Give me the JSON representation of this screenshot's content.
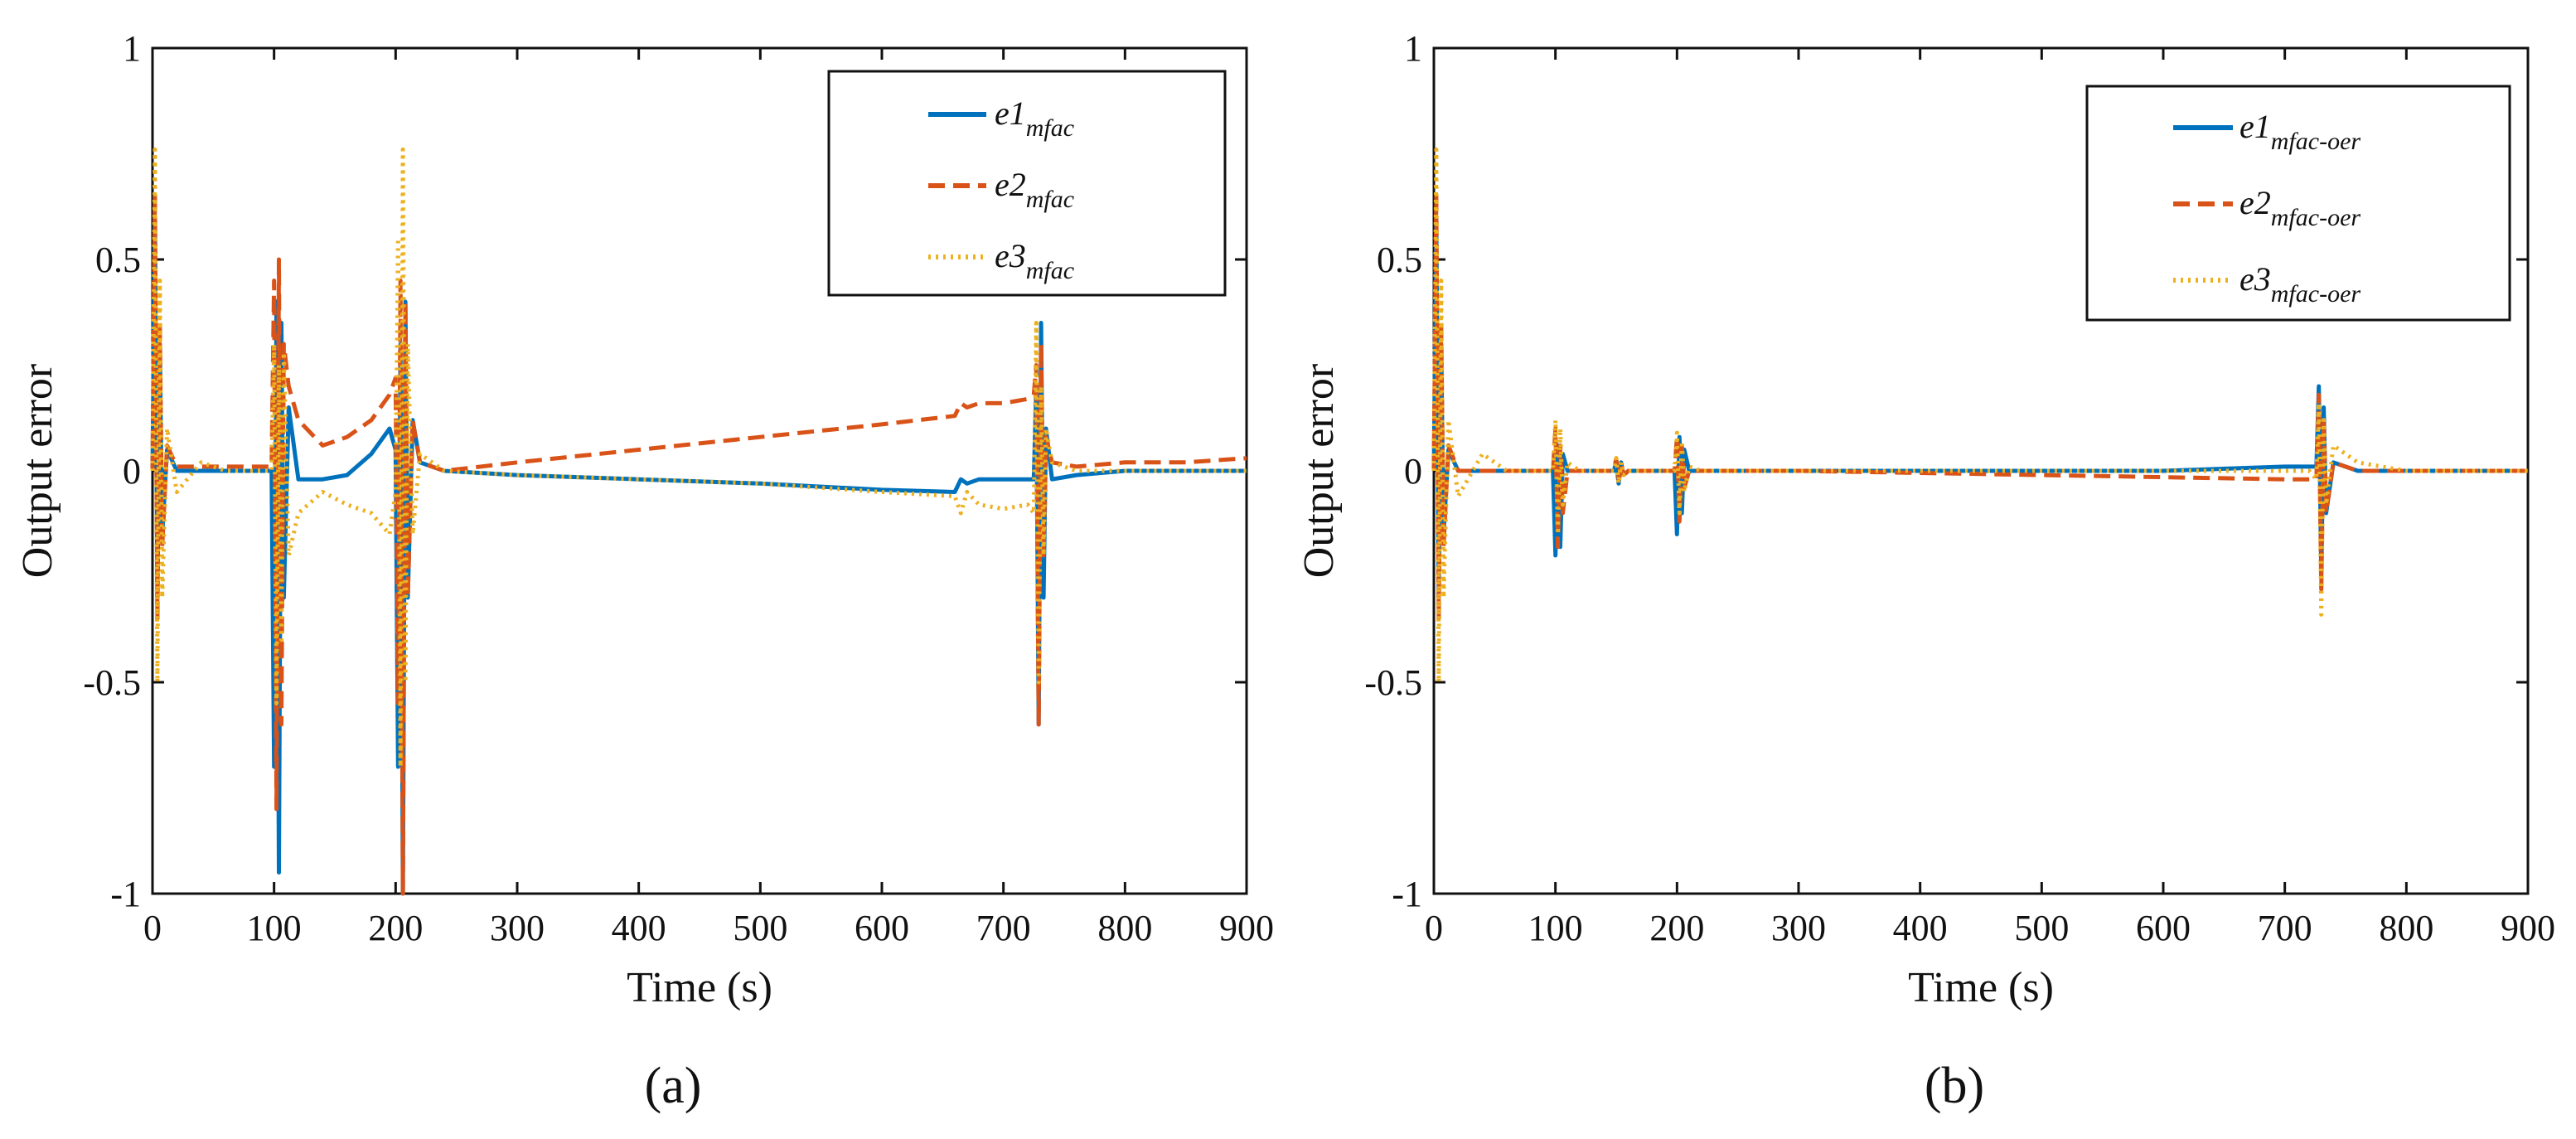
{
  "colors": {
    "e1": "#0072BD",
    "e2": "#D95319",
    "e3": "#EDB120"
  },
  "chart_data": [
    {
      "type": "line",
      "panel": "(a)",
      "xlabel": "Time  (s)",
      "ylabel": "Output error",
      "xlim": [
        0,
        900
      ],
      "ylim": [
        -1,
        1
      ],
      "xticks": [
        "0",
        "100",
        "200",
        "300",
        "400",
        "500",
        "600",
        "700",
        "800",
        "900"
      ],
      "yticks": [
        "1",
        "0.5",
        "0",
        "-0.5",
        "-1"
      ],
      "legend_position": "top-right",
      "series": [
        {
          "name": "e1",
          "sub": "mfac",
          "style": "solid",
          "x": [
            0,
            2,
            4,
            6,
            8,
            12,
            20,
            40,
            60,
            80,
            98,
            100,
            102,
            104,
            106,
            108,
            112,
            120,
            140,
            160,
            180,
            195,
            200,
            202,
            204,
            206,
            208,
            210,
            214,
            220,
            240,
            300,
            400,
            500,
            600,
            660,
            665,
            670,
            680,
            700,
            720,
            725,
            727,
            729,
            731,
            733,
            735,
            740,
            760,
            800,
            850,
            900
          ],
          "y": [
            0,
            0.6,
            -0.3,
            0.3,
            -0.15,
            0.05,
            0,
            0,
            0,
            0,
            0,
            -0.7,
            0.4,
            -0.95,
            0.35,
            -0.3,
            0.15,
            -0.02,
            -0.02,
            -0.01,
            0.04,
            0.1,
            0.05,
            -0.7,
            0.3,
            -1,
            0.4,
            -0.3,
            0.12,
            0.02,
            0,
            -0.01,
            -0.02,
            -0.03,
            -0.045,
            -0.05,
            -0.02,
            -0.03,
            -0.02,
            -0.02,
            -0.02,
            -0.02,
            0.2,
            -0.6,
            0.35,
            -0.3,
            0.1,
            -0.02,
            -0.01,
            0,
            0,
            0
          ]
        },
        {
          "name": "e2",
          "sub": "mfac",
          "style": "dashed",
          "x": [
            0,
            2,
            4,
            6,
            8,
            12,
            20,
            40,
            60,
            80,
            98,
            100,
            102,
            104,
            106,
            108,
            112,
            120,
            140,
            160,
            180,
            195,
            200,
            202,
            204,
            206,
            208,
            210,
            214,
            220,
            240,
            300,
            400,
            500,
            600,
            660,
            665,
            670,
            680,
            700,
            720,
            725,
            727,
            729,
            731,
            733,
            735,
            740,
            760,
            800,
            850,
            900
          ],
          "y": [
            0,
            0.65,
            -0.35,
            0.35,
            -0.18,
            0.06,
            0.01,
            0.01,
            0.01,
            0.01,
            0.01,
            0.45,
            -0.8,
            0.5,
            -0.6,
            0.3,
            0.2,
            0.12,
            0.06,
            0.08,
            0.12,
            0.18,
            0.22,
            -0.55,
            0.45,
            -1,
            0.4,
            -0.3,
            0.12,
            0.02,
            0,
            0.02,
            0.05,
            0.08,
            0.11,
            0.13,
            0.16,
            0.15,
            0.16,
            0.16,
            0.17,
            0.18,
            0.25,
            -0.6,
            0.3,
            -0.2,
            0.08,
            0.02,
            0.01,
            0.02,
            0.02,
            0.03
          ]
        },
        {
          "name": "e3",
          "sub": "mfac",
          "style": "dotted",
          "x": [
            0,
            2,
            4,
            6,
            8,
            12,
            20,
            40,
            60,
            80,
            98,
            100,
            102,
            104,
            106,
            108,
            112,
            120,
            140,
            160,
            180,
            195,
            200,
            202,
            204,
            206,
            208,
            210,
            214,
            220,
            240,
            300,
            400,
            500,
            600,
            660,
            665,
            670,
            680,
            700,
            720,
            725,
            727,
            729,
            731,
            733,
            735,
            740,
            760,
            800,
            850,
            900
          ],
          "y": [
            0,
            0.76,
            -0.5,
            0.45,
            -0.3,
            0.1,
            -0.05,
            0.02,
            0,
            0,
            0,
            0.3,
            -0.55,
            0.25,
            -0.4,
            0.28,
            -0.2,
            -0.1,
            -0.05,
            -0.08,
            -0.1,
            -0.15,
            -0.05,
            0.55,
            -0.7,
            0.76,
            -0.5,
            0.3,
            -0.15,
            0.04,
            0,
            -0.01,
            -0.02,
            -0.03,
            -0.05,
            -0.06,
            -0.1,
            -0.05,
            -0.08,
            -0.09,
            -0.08,
            -0.1,
            0.35,
            -0.5,
            0.2,
            -0.2,
            0.1,
            0.02,
            0,
            0,
            0,
            0
          ]
        }
      ]
    },
    {
      "type": "line",
      "panel": "(b)",
      "xlabel": "Time  (s)",
      "ylabel": "Output error",
      "xlim": [
        0,
        900
      ],
      "ylim": [
        -1,
        1
      ],
      "xticks": [
        "0",
        "100",
        "200",
        "300",
        "400",
        "500",
        "600",
        "700",
        "800",
        "900"
      ],
      "yticks": [
        "1",
        "0.5",
        "0",
        "-0.5",
        "-1"
      ],
      "legend_position": "top-right",
      "series": [
        {
          "name": "e1",
          "sub": "mfac-oer",
          "style": "solid",
          "x": [
            0,
            2,
            4,
            6,
            8,
            12,
            20,
            40,
            60,
            80,
            98,
            100,
            102,
            104,
            106,
            110,
            120,
            148,
            150,
            152,
            154,
            156,
            160,
            198,
            200,
            202,
            204,
            206,
            210,
            220,
            300,
            400,
            500,
            600,
            700,
            720,
            726,
            728,
            730,
            732,
            734,
            740,
            760,
            800,
            900
          ],
          "y": [
            0,
            0.6,
            -0.3,
            0.3,
            -0.15,
            0.05,
            0,
            0,
            0,
            0,
            0,
            -0.2,
            0.06,
            -0.18,
            0.04,
            0,
            0,
            0,
            0.02,
            -0.03,
            0.02,
            -0.01,
            0,
            0,
            -0.15,
            0.08,
            -0.1,
            0.05,
            0,
            0,
            0,
            0,
            0,
            0,
            0.01,
            0.01,
            0.01,
            0.2,
            -0.25,
            0.15,
            -0.1,
            0.02,
            0,
            0,
            0
          ]
        },
        {
          "name": "e2",
          "sub": "mfac-oer",
          "style": "dashed",
          "x": [
            0,
            2,
            4,
            6,
            8,
            12,
            20,
            40,
            60,
            80,
            98,
            100,
            102,
            104,
            106,
            110,
            120,
            148,
            150,
            152,
            154,
            156,
            160,
            198,
            200,
            202,
            204,
            206,
            210,
            220,
            300,
            400,
            500,
            600,
            700,
            720,
            726,
            728,
            730,
            732,
            734,
            740,
            760,
            800,
            900
          ],
          "y": [
            0,
            0.65,
            -0.35,
            0.35,
            -0.18,
            0.06,
            0,
            0,
            0,
            0,
            0,
            0.1,
            -0.18,
            0.06,
            -0.1,
            0,
            0,
            0,
            0.03,
            -0.02,
            0.02,
            -0.01,
            0,
            0,
            0.08,
            -0.12,
            0.06,
            -0.04,
            0,
            0,
            0,
            -0.005,
            -0.01,
            -0.015,
            -0.02,
            -0.02,
            -0.02,
            0.18,
            -0.28,
            0.12,
            -0.1,
            0.02,
            0,
            0,
            0
          ]
        },
        {
          "name": "e3",
          "sub": "mfac-oer",
          "style": "dotted",
          "x": [
            0,
            2,
            4,
            6,
            8,
            12,
            20,
            40,
            60,
            80,
            98,
            100,
            102,
            104,
            106,
            110,
            120,
            148,
            150,
            152,
            154,
            156,
            160,
            198,
            200,
            202,
            204,
            206,
            210,
            220,
            300,
            400,
            500,
            600,
            700,
            720,
            726,
            728,
            730,
            732,
            734,
            740,
            760,
            800,
            900
          ],
          "y": [
            0,
            0.76,
            -0.5,
            0.45,
            -0.3,
            0.12,
            -0.06,
            0.04,
            0,
            0,
            0,
            0.12,
            -0.15,
            0.1,
            -0.08,
            0.02,
            0,
            0,
            0.03,
            -0.03,
            0.02,
            -0.01,
            0,
            0,
            0.09,
            -0.1,
            0.07,
            -0.05,
            0.01,
            0,
            0,
            0,
            0,
            0,
            0,
            0,
            -0.02,
            0.16,
            -0.34,
            0.12,
            -0.08,
            0.06,
            0.02,
            0,
            0
          ]
        }
      ]
    }
  ]
}
